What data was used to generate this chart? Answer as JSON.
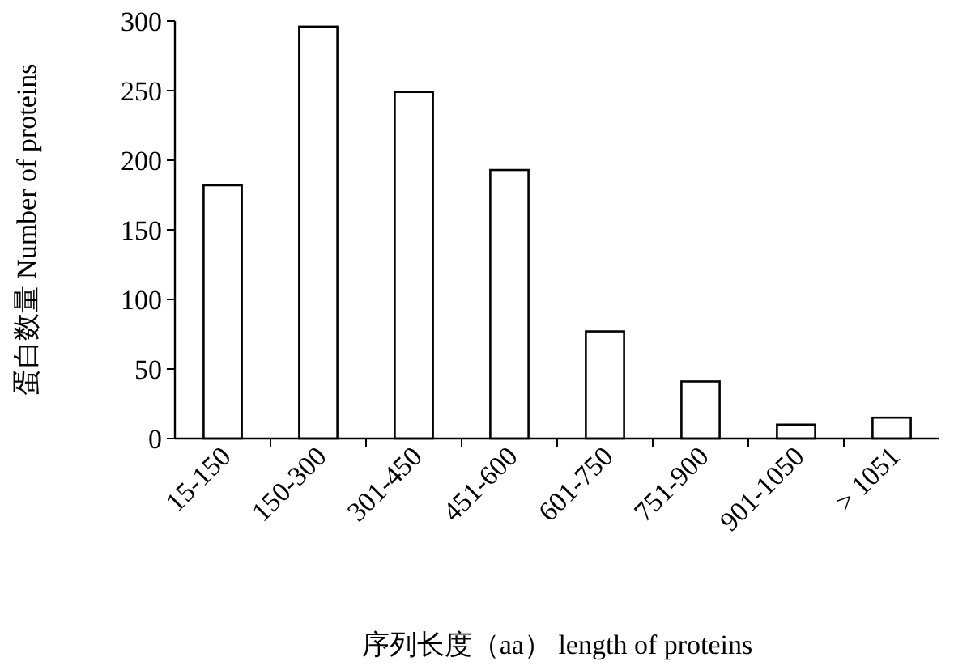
{
  "chart_data": {
    "type": "bar",
    "xlabel": "序列长度（aa） length of proteins",
    "ylabel": "蛋白数量 Number of proteins",
    "categories": [
      "15-150",
      "150-300",
      "301-450",
      "451-600",
      "601-750",
      "751-900",
      "901-1050",
      "> 1051"
    ],
    "values": [
      182,
      296,
      249,
      193,
      77,
      41,
      10,
      15
    ],
    "color": "#ffffff",
    "ylim": [
      0,
      300
    ],
    "yticks": [
      0,
      50,
      100,
      150,
      200,
      250,
      300
    ],
    "grid": false
  }
}
